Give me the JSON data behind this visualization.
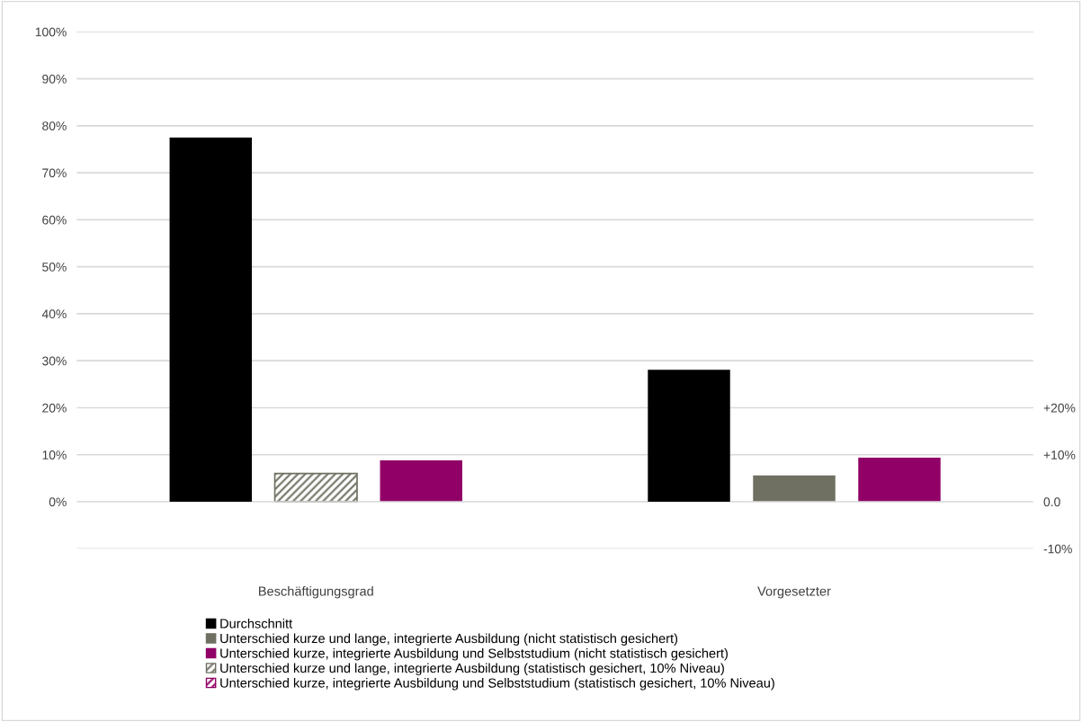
{
  "chart_data": {
    "type": "bar",
    "categories": [
      "Beschäftigungsgrad",
      "Vorgesetzter"
    ],
    "series": [
      {
        "name": "Durchschnitt",
        "color": "#000000",
        "values": [
          77.5,
          28.1
        ]
      },
      {
        "name": "Unterschied kurze und lange, integrierte Ausbildung (nicht statistisch gesichert)",
        "color": "#6f6f62",
        "values": [
          null,
          5.6
        ],
        "axis": "y2"
      },
      {
        "name": "Unterschied kurze, integrierte Ausbildung und Selbststudium (nicht statistisch gesichert)",
        "color": "#910066",
        "values": [
          8.8,
          9.4
        ],
        "axis": "y2"
      },
      {
        "name": "Unterschied kurze und lange, integrierte Ausbildung (statistisch gesichert, 10% Niveau)",
        "color": "#6f6f62",
        "values": [
          6.0,
          null
        ],
        "axis": "y2"
      },
      {
        "name": "Unterschied kurze, integrierte Ausbildung und Selbststudium (statistisch gesichert, 10% Niveau)",
        "color": "#910066",
        "values": [
          null,
          null
        ],
        "axis": "y2"
      }
    ],
    "ylim": [
      -10,
      100
    ],
    "yticks": [
      {
        "value": -10,
        "label": null
      },
      {
        "value": 0,
        "label": "0%"
      },
      {
        "value": 10,
        "label": "10%"
      },
      {
        "value": 20,
        "label": "20%"
      },
      {
        "value": 30,
        "label": "30%"
      },
      {
        "value": 40,
        "label": "40%"
      },
      {
        "value": 50,
        "label": "50%"
      },
      {
        "value": 60,
        "label": "60%"
      },
      {
        "value": 70,
        "label": "70%"
      },
      {
        "value": 80,
        "label": "80%"
      },
      {
        "value": 90,
        "label": "90%"
      },
      {
        "value": 100,
        "label": "100%"
      }
    ],
    "y2lim": [
      -10,
      100
    ],
    "y2ticks": [
      {
        "value": -10,
        "label": "-10%"
      },
      {
        "value": 0,
        "label": "0.0"
      },
      {
        "value": 10,
        "label": "+10%"
      },
      {
        "value": 20,
        "label": "+20%"
      }
    ],
    "grid": "y",
    "legend": "bottom"
  }
}
